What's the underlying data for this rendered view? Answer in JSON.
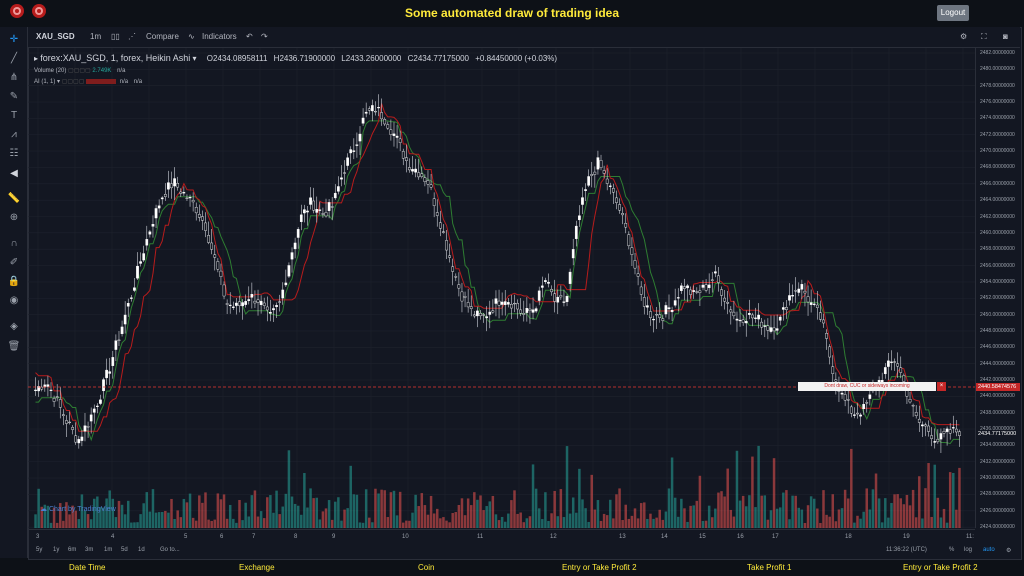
{
  "app": {
    "title": "Some automated draw of trading idea",
    "logout": "Logout"
  },
  "toolbar": {
    "symbol": "XAU_SGD",
    "interval": "1m",
    "compare": "Compare",
    "indicators": "Indicators"
  },
  "legend": {
    "series": "forex:XAU_SGD, 1, forex, Heikin Ashi",
    "open": "O2434.08958111",
    "high": "H2436.71900000",
    "low": "L2433.26000000",
    "close": "C2434.77175000",
    "change": "+0.84450000 (+0.03%)",
    "volume_label": "Volume (20)",
    "volume_value": "2.749K",
    "volume_na": "n/a",
    "ai_label": "AI (1, 1)",
    "ai_na1": "n/a",
    "ai_na2": "n/a"
  },
  "price_axis": [
    "2482.00000000",
    "2480.00000000",
    "2478.00000000",
    "2476.00000000",
    "2474.00000000",
    "2472.00000000",
    "2470.00000000",
    "2468.00000000",
    "2466.00000000",
    "2464.00000000",
    "2462.00000000",
    "2460.00000000",
    "2458.00000000",
    "2456.00000000",
    "2454.00000000",
    "2452.00000000",
    "2450.00000000",
    "2448.00000000",
    "2446.00000000",
    "2444.00000000",
    "2442.00000000",
    "2440.00000000",
    "2438.00000000",
    "2436.00000000",
    "2434.00000000",
    "2432.00000000",
    "2430.00000000",
    "2428.00000000",
    "2426.00000000",
    "2424.00000000"
  ],
  "price_tags": {
    "line_price": "2440.58474576",
    "last_price": "2434.77175000"
  },
  "annotation": {
    "text": "Dont draw, CUC or sideways incoming",
    "close": "×"
  },
  "time_axis": [
    "3",
    "4",
    "5",
    "6",
    "7",
    "8",
    "9",
    "10",
    "11",
    "12",
    "13",
    "14",
    "15",
    "16",
    "17",
    "18",
    "19",
    "11:"
  ],
  "bottom": {
    "ranges": [
      "5y",
      "1y",
      "6m",
      "3m",
      "1m",
      "5d",
      "1d"
    ],
    "goto": "Go to...",
    "clock": "11:36:22 (UTC)",
    "percent": "%",
    "log": "log",
    "auto": "auto"
  },
  "watermark": "Chart by TradingView",
  "footer": [
    "Date Time",
    "Exchange",
    "Coin",
    "Entry or Take Profit 2",
    "Take Profit 1",
    "Entry or Take Profit 2"
  ],
  "colors": {
    "up": "#ffffff",
    "down": "#ffffff",
    "vol_up": "#26a69a",
    "vol_down": "#ef5350",
    "line_green": "#2e7d32",
    "line_red": "#b71c1c",
    "accent": "#ffeb3b"
  },
  "chart_data": {
    "type": "candlestick",
    "y_range": [
      2423,
      2483
    ],
    "closes": [
      2440.0,
      2441.2,
      2438.5,
      2435.8,
      2433.5,
      2436.0,
      2439.0,
      2443.0,
      2447.5,
      2452.0,
      2457.0,
      2461.5,
      2465.0,
      2466.5,
      2465.0,
      2463.5,
      2461.0,
      2456.0,
      2451.0,
      2450.5,
      2452.0,
      2451.5,
      2449.0,
      2451.0,
      2457.0,
      2462.0,
      2464.0,
      2462.5,
      2463.5,
      2468.0,
      2471.0,
      2475.0,
      2476.0,
      2474.5,
      2472.0,
      2469.0,
      2468.0,
      2466.5,
      2462.0,
      2457.0,
      2452.5,
      2450.0,
      2449.0,
      2450.5,
      2452.0,
      2451.0,
      2449.5,
      2450.5,
      2454.0,
      2451.0,
      2451.5,
      2461.0,
      2466.5,
      2469.0,
      2466.0,
      2463.0,
      2458.5,
      2452.0,
      2449.5,
      2449.5,
      2451.0,
      2453.5,
      2452.0,
      2453.0,
      2454.5,
      2451.5,
      2449.0,
      2449.5,
      2449.0,
      2448.0,
      2448.5,
      2452.0,
      2453.5,
      2451.0,
      2449.0,
      2443.0,
      2439.0,
      2437.0,
      2437.5,
      2440.0,
      2442.5,
      2444.0,
      2440.0,
      2436.0,
      2435.0,
      2433.5,
      2434.5,
      2434.8
    ]
  }
}
